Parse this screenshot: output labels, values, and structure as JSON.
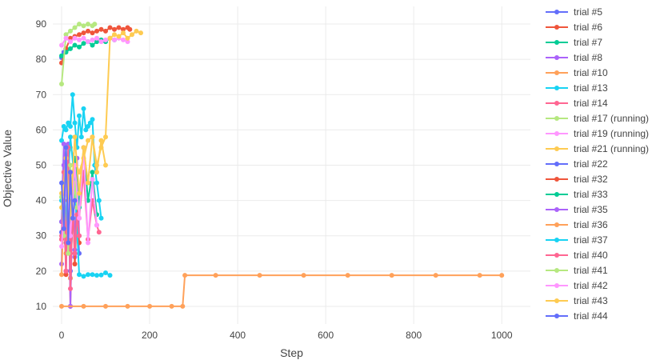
{
  "chart_data": {
    "type": "line",
    "xlabel": "Step",
    "ylabel": "Objective Value",
    "xlim": [
      -20,
      1065
    ],
    "ylim": [
      5,
      95
    ],
    "x_ticks": [
      0,
      200,
      400,
      600,
      800,
      1000
    ],
    "y_ticks": [
      10,
      20,
      30,
      40,
      50,
      60,
      70,
      80,
      90
    ],
    "grid": true,
    "legend_position": "right",
    "series": [
      {
        "name": "trial #5",
        "color": "#636efa",
        "x": [
          0,
          5,
          10
        ],
        "y": [
          80.5,
          82,
          83
        ]
      },
      {
        "name": "trial #6",
        "color": "#ef553b",
        "x": [
          0,
          10,
          20,
          30,
          40,
          50,
          60,
          70,
          80,
          90,
          100,
          110,
          120,
          130,
          140,
          150,
          155
        ],
        "y": [
          79,
          83,
          86,
          86.5,
          87,
          87.5,
          88,
          87.5,
          88,
          88.5,
          88,
          89,
          88.5,
          89,
          88.5,
          89,
          88.5
        ]
      },
      {
        "name": "trial #7",
        "color": "#00cc96",
        "x": [
          0,
          10,
          20,
          30,
          40,
          50,
          60,
          70,
          80,
          90,
          100,
          110,
          120
        ],
        "y": [
          81,
          82,
          83,
          84,
          83.5,
          84.5,
          85,
          84,
          85,
          85.5,
          85,
          86,
          85.5
        ]
      },
      {
        "name": "trial #8",
        "color": "#ab63fa",
        "x": [
          0,
          5,
          10,
          15,
          20,
          25,
          30,
          35,
          40
        ],
        "y": [
          22,
          50,
          28,
          56,
          18,
          45,
          24,
          52,
          30
        ]
      },
      {
        "name": "trial #10",
        "color": "#ffa15a",
        "x": [
          0,
          5,
          10,
          15,
          20,
          25,
          30,
          35
        ],
        "y": [
          19,
          40,
          25,
          45,
          18,
          48,
          22,
          36
        ]
      },
      {
        "name": "trial #13",
        "color": "#19d3f3",
        "x": [
          0,
          5,
          10,
          15,
          20,
          25,
          30,
          35,
          40,
          45,
          50,
          55,
          60,
          65,
          70,
          75,
          80,
          85,
          90
        ],
        "y": [
          57,
          61,
          60,
          62,
          61,
          70,
          62,
          55,
          64,
          58,
          66,
          60,
          61,
          62,
          63,
          50,
          45,
          40,
          35
        ]
      },
      {
        "name": "trial #14",
        "color": "#ff6692",
        "x": [
          0,
          10,
          20,
          30,
          40,
          50,
          60,
          70,
          80,
          85
        ],
        "y": [
          30,
          45,
          25,
          50,
          35,
          48,
          29,
          40,
          33,
          31
        ]
      },
      {
        "name": "trial #17 (running)",
        "color": "#b6e880",
        "x": [
          0,
          10,
          20,
          30,
          40,
          50,
          60,
          70,
          75
        ],
        "y": [
          73,
          87,
          88,
          89,
          90,
          89.5,
          90,
          89.5,
          90
        ]
      },
      {
        "name": "trial #19 (running)",
        "color": "#ff97ff",
        "x": [
          0,
          10,
          20,
          30,
          40,
          50,
          60,
          70,
          80,
          90,
          100,
          110,
          120,
          130,
          140,
          150
        ],
        "y": [
          84,
          86,
          85,
          86,
          85.5,
          86,
          85,
          85.5,
          86,
          85,
          85.5,
          86,
          85.5,
          86,
          85.5,
          85
        ]
      },
      {
        "name": "trial #21 (running)",
        "color": "#fecb52",
        "x": [
          0,
          20,
          40,
          50,
          60,
          70,
          80,
          90,
          100,
          110,
          120,
          130,
          140,
          150,
          160,
          170,
          180
        ],
        "y": [
          42,
          55,
          48,
          52,
          57,
          58,
          50,
          55,
          58,
          86,
          87,
          86.5,
          87.5,
          86,
          87,
          88,
          87.5
        ]
      },
      {
        "name": "trial #22",
        "color": "#636efa",
        "x": [
          0,
          10,
          20,
          30,
          40
        ],
        "y": [
          31,
          55,
          20,
          48,
          25
        ]
      },
      {
        "name": "trial #32",
        "color": "#ef553b",
        "x": [
          0,
          5,
          10,
          15,
          20,
          25,
          30,
          35,
          40
        ],
        "y": [
          29,
          40,
          19,
          50,
          10,
          42,
          22,
          38,
          28
        ]
      },
      {
        "name": "trial #33",
        "color": "#00cc96",
        "x": [
          0,
          10,
          20,
          30,
          40,
          50,
          60,
          70,
          80
        ],
        "y": [
          34,
          45,
          30,
          52,
          38,
          55,
          40,
          48,
          36
        ]
      },
      {
        "name": "trial #35",
        "color": "#ab63fa",
        "x": [
          0,
          5,
          10,
          15,
          20,
          25,
          30,
          35
        ],
        "y": [
          34,
          56,
          20,
          50,
          10,
          44,
          26,
          35
        ]
      },
      {
        "name": "trial #36",
        "color": "#ffa15a",
        "x": [
          0,
          50,
          100,
          150,
          200,
          250,
          275,
          280,
          350,
          450,
          550,
          650,
          750,
          850,
          950,
          1000
        ],
        "y": [
          10,
          10,
          10,
          10,
          10,
          10,
          10,
          18.8,
          18.8,
          18.8,
          18.8,
          18.8,
          18.8,
          18.8,
          18.8,
          18.8
        ]
      },
      {
        "name": "trial #37",
        "color": "#19d3f3",
        "x": [
          0,
          10,
          20,
          30,
          40,
          50,
          60,
          70,
          80,
          90,
          100,
          110
        ],
        "y": [
          40,
          35,
          58,
          45,
          19,
          18.5,
          19,
          19,
          18.8,
          18.9,
          19.5,
          18.8
        ]
      },
      {
        "name": "trial #40",
        "color": "#ff6692",
        "x": [
          0,
          5,
          10,
          15,
          20,
          25,
          30,
          35,
          40
        ],
        "y": [
          29,
          48,
          20,
          55,
          15,
          40,
          25,
          36,
          30
        ]
      },
      {
        "name": "trial #41",
        "color": "#b6e880",
        "x": [
          0,
          5,
          10,
          15,
          20,
          25,
          30,
          35
        ],
        "y": [
          41,
          30,
          55,
          25,
          50,
          35,
          45,
          38
        ]
      },
      {
        "name": "trial #42",
        "color": "#ff97ff",
        "x": [
          0,
          10,
          20,
          30,
          40,
          50,
          60,
          70,
          80
        ],
        "y": [
          27,
          45,
          30,
          50,
          35,
          55,
          28,
          46,
          33
        ]
      },
      {
        "name": "trial #43",
        "color": "#fecb52",
        "x": [
          0,
          10,
          20,
          30,
          40,
          50,
          60,
          70,
          80,
          90,
          100
        ],
        "y": [
          38,
          52,
          35,
          58,
          42,
          55,
          45,
          58,
          48,
          57,
          50
        ]
      },
      {
        "name": "trial #44",
        "color": "#636efa",
        "x": [
          0,
          5,
          10,
          15,
          20,
          25,
          30
        ],
        "y": [
          45,
          32,
          55,
          28,
          48,
          35,
          40
        ]
      }
    ]
  }
}
